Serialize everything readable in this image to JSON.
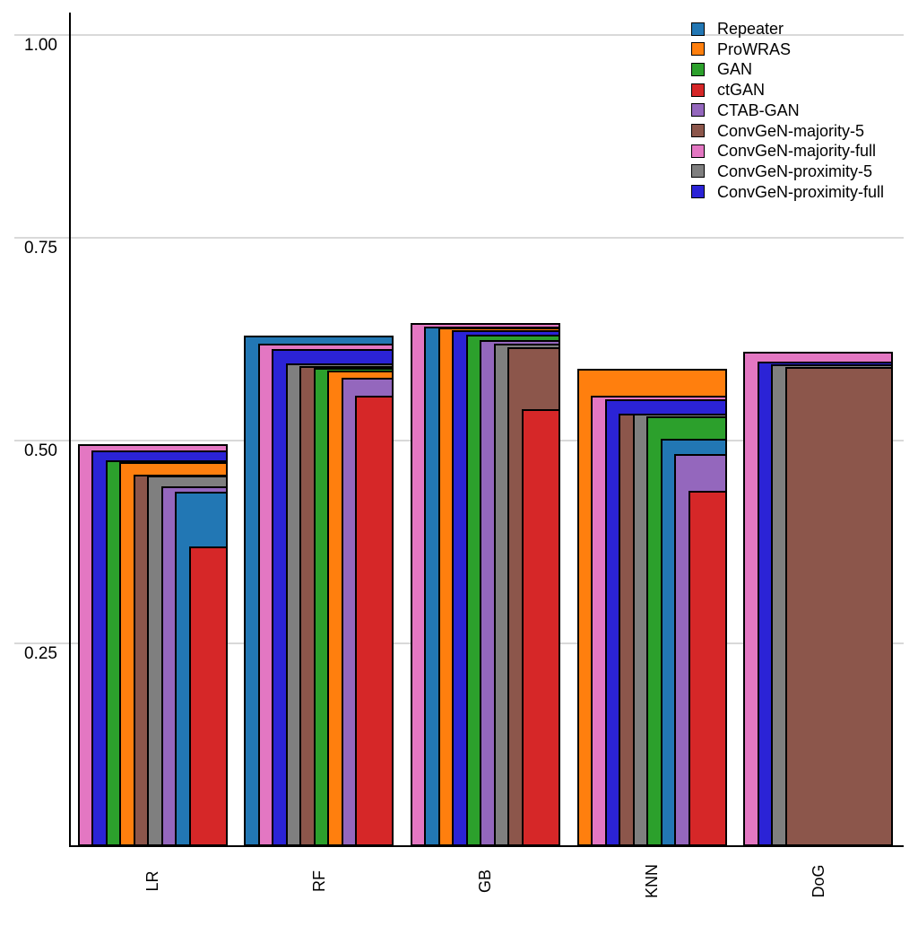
{
  "figure": {
    "background": "#ffffff",
    "gridline_color": "#d9d9d9",
    "axis_color": "#000000"
  },
  "y_axis": {
    "ticks": [
      {
        "label": "1.00",
        "value": 1.0
      },
      {
        "label": "0.75",
        "value": 0.75
      },
      {
        "label": "0.50",
        "value": 0.5
      },
      {
        "label": "0.25",
        "value": 0.25
      }
    ]
  },
  "x_axis": {
    "categories": [
      "LR",
      "RF",
      "GB",
      "KNN",
      "DoG"
    ]
  },
  "chart_data": {
    "type": "bar",
    "subtype": "nested-overlapping-bars",
    "title": "",
    "xlabel": "",
    "ylabel": "",
    "ylim": [
      0,
      1.0
    ],
    "grid": true,
    "gridline_values": [
      0.25,
      0.5,
      0.75,
      1.0
    ],
    "legend_position": "top-right",
    "categories": [
      "LR",
      "RF",
      "GB",
      "KNN",
      "DoG"
    ],
    "series": [
      {
        "name": "Repeater",
        "color": "#2277b4",
        "values": [
          0.437,
          0.629,
          0.641,
          0.502,
          null
        ]
      },
      {
        "name": "ProWRAS",
        "color": "#ff7f0e",
        "values": [
          0.474,
          0.586,
          0.639,
          0.589,
          null
        ]
      },
      {
        "name": "GAN",
        "color": "#2ca02c",
        "values": [
          0.476,
          0.59,
          0.631,
          0.53,
          null
        ]
      },
      {
        "name": "ctGAN",
        "color": "#d62728",
        "values": [
          0.369,
          0.555,
          0.539,
          0.438,
          null
        ]
      },
      {
        "name": "CTAB-GAN",
        "color": "#9467bd",
        "values": [
          0.444,
          0.577,
          0.624,
          0.483,
          null
        ]
      },
      {
        "name": "ConvGeN-majority-5",
        "color": "#8c564b",
        "values": [
          0.458,
          0.592,
          0.615,
          0.533,
          0.591
        ]
      },
      {
        "name": "ConvGeN-majority-full",
        "color": "#e377c2",
        "values": [
          0.496,
          0.619,
          0.645,
          0.555,
          0.61
        ]
      },
      {
        "name": "ConvGeN-proximity-5",
        "color": "#7f7f7f",
        "values": [
          0.457,
          0.595,
          0.619,
          0.533,
          0.594
        ]
      },
      {
        "name": "ConvGeN-proximity-full",
        "color": "#2b23d6",
        "values": [
          0.488,
          0.613,
          0.636,
          0.551,
          0.597
        ]
      }
    ]
  }
}
